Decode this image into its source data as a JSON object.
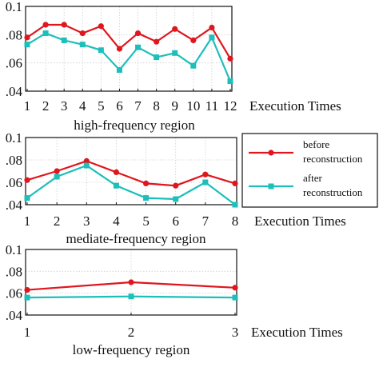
{
  "colors": {
    "before": "#e0161e",
    "after": "#1dbfba",
    "axis": "#111111",
    "grid": "#cfcfcf"
  },
  "legend": {
    "before_lines": [
      "before",
      "reconstruction"
    ],
    "after_lines": [
      "after",
      "reconstruction"
    ]
  },
  "chart_data": [
    {
      "type": "line",
      "title": "high-frequency region",
      "xlabel": "Execution Times",
      "x": [
        1,
        2,
        3,
        4,
        5,
        6,
        7,
        8,
        9,
        10,
        11,
        12
      ],
      "tick_labels_x": [
        "1",
        "2",
        "3",
        "4",
        "5",
        "6",
        "7",
        "8",
        "9",
        "10",
        "11",
        "12"
      ],
      "ylim": [
        0.04,
        0.1
      ],
      "tick_labels_y": [
        ".04",
        ".06",
        ".08",
        "0.1"
      ],
      "grid": true,
      "series": [
        {
          "name": "before reconstruction",
          "values": [
            0.078,
            0.087,
            0.087,
            0.081,
            0.086,
            0.07,
            0.081,
            0.075,
            0.084,
            0.076,
            0.085,
            0.063
          ]
        },
        {
          "name": "after reconstruction",
          "values": [
            0.073,
            0.081,
            0.076,
            0.073,
            0.069,
            0.055,
            0.071,
            0.064,
            0.067,
            0.058,
            0.078,
            0.047
          ]
        }
      ]
    },
    {
      "type": "line",
      "title": "mediate-frequency region",
      "xlabel": "Execution Times",
      "x": [
        1,
        2,
        3,
        4,
        5,
        6,
        7,
        8
      ],
      "tick_labels_x": [
        "1",
        "2",
        "3",
        "4",
        "5",
        "6",
        "7",
        "8"
      ],
      "ylim": [
        0.04,
        0.1
      ],
      "tick_labels_y": [
        ".04",
        ".06",
        ".08",
        "0.1"
      ],
      "grid": true,
      "legend": "right",
      "series": [
        {
          "name": "before reconstruction",
          "values": [
            0.062,
            0.07,
            0.079,
            0.069,
            0.059,
            0.057,
            0.067,
            0.059
          ]
        },
        {
          "name": "after reconstruction",
          "values": [
            0.046,
            0.065,
            0.075,
            0.057,
            0.046,
            0.045,
            0.06,
            0.04
          ]
        }
      ]
    },
    {
      "type": "line",
      "title": "low-frequency region",
      "xlabel": "Execution Times",
      "x": [
        1,
        2,
        3
      ],
      "tick_labels_x": [
        "1",
        "2",
        "3"
      ],
      "ylim": [
        0.04,
        0.1
      ],
      "tick_labels_y": [
        ".04",
        ".06",
        ".08",
        "0.1"
      ],
      "grid": true,
      "series": [
        {
          "name": "before reconstruction",
          "values": [
            0.063,
            0.07,
            0.065
          ]
        },
        {
          "name": "after reconstruction",
          "values": [
            0.056,
            0.057,
            0.056
          ]
        }
      ]
    }
  ]
}
